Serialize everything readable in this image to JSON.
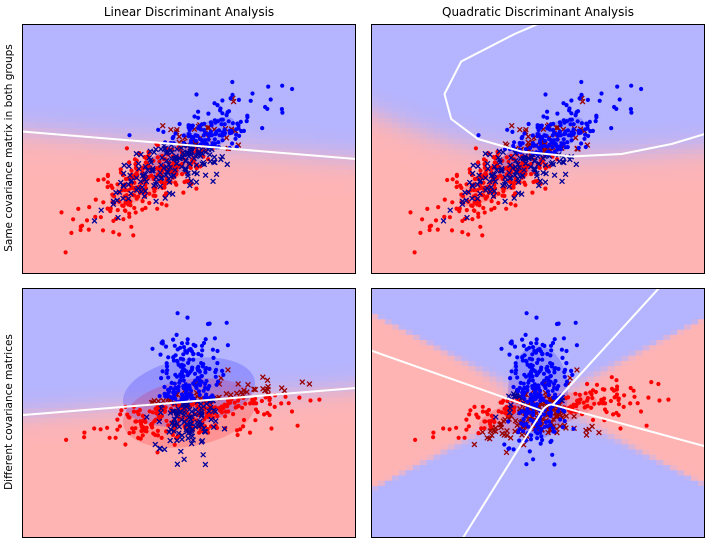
{
  "figure": {
    "col_titles": [
      "Linear Discriminant Analysis",
      "Quadratic Discriminant Analysis"
    ],
    "row_labels": [
      "Same covariance matrix in both groups",
      "Different covariance matrices"
    ]
  },
  "colors": {
    "class0": "#ff0000",
    "class1": "#0000ff",
    "class0_misclassified": "#990000",
    "class1_misclassified": "#000099",
    "region0": "#ffb4b4",
    "region1": "#b4b4ff",
    "boundary": "#ffffff"
  },
  "chart_data": [
    {
      "type": "scatter",
      "title": "Linear Discriminant Analysis",
      "ylabel": "Same covariance matrix in both groups",
      "xlim": [
        -4,
        6
      ],
      "ylim": [
        -4,
        6
      ],
      "grid": false,
      "series": [],
      "boundary": {
        "kind": "line",
        "x": [
          -4,
          6
        ],
        "y": [
          1.7,
          0.6
        ]
      },
      "class_ellipses": [
        {
          "cx": 0.0,
          "cy": 0.0,
          "rx": 1.0,
          "ry": 0.4,
          "angle": 33
        },
        {
          "cx": 1.0,
          "cy": 1.0,
          "rx": 1.0,
          "ry": 0.4,
          "angle": 33
        }
      ]
    },
    {
      "type": "scatter",
      "title": "Quadratic Discriminant Analysis",
      "xlim": [
        -4,
        6
      ],
      "ylim": [
        -4,
        6
      ],
      "grid": false,
      "series": [],
      "boundary": {
        "kind": "curve",
        "x": [
          1.0,
          0.3,
          -1.3,
          -1.8,
          -1.6,
          -0.8,
          0.5,
          2.0,
          3.5,
          5.0,
          6.0
        ],
        "y": [
          6.0,
          5.6,
          4.5,
          3.2,
          2.2,
          1.4,
          0.9,
          0.7,
          0.8,
          1.2,
          1.6
        ]
      },
      "class_ellipses": [
        {
          "cx": 0.0,
          "cy": 0.0,
          "rx": 1.0,
          "ry": 0.4,
          "angle": 33
        },
        {
          "cx": 1.0,
          "cy": 1.0,
          "rx": 1.0,
          "ry": 0.4,
          "angle": 33
        }
      ]
    },
    {
      "type": "scatter",
      "ylabel": "Different covariance matrices",
      "xlim": [
        -8,
        8
      ],
      "ylim": [
        -6,
        6
      ],
      "grid": false,
      "series": [],
      "boundary": {
        "kind": "line",
        "x": [
          -8,
          8
        ],
        "y": [
          -0.1,
          1.2
        ]
      },
      "class_ellipses": [
        {
          "cx": 0.0,
          "cy": 0.0,
          "rx": 2.0,
          "ry": 1.0,
          "angle": 10
        },
        {
          "cx": 0.0,
          "cy": 1.0,
          "rx": 2.0,
          "ry": 1.0,
          "angle": 10
        }
      ]
    },
    {
      "type": "scatter",
      "xlim": [
        -8,
        8
      ],
      "ylim": [
        -6,
        6
      ],
      "grid": false,
      "series": [],
      "boundary": {
        "kind": "hyperbola"
      },
      "class_ellipses": [
        {
          "cx": 0.0,
          "cy": 0.0,
          "rx": 1.8,
          "ry": 0.5,
          "angle": 12
        },
        {
          "cx": 0.0,
          "cy": 1.0,
          "rx": 0.9,
          "ry": 1.4,
          "angle": 0
        }
      ]
    }
  ]
}
